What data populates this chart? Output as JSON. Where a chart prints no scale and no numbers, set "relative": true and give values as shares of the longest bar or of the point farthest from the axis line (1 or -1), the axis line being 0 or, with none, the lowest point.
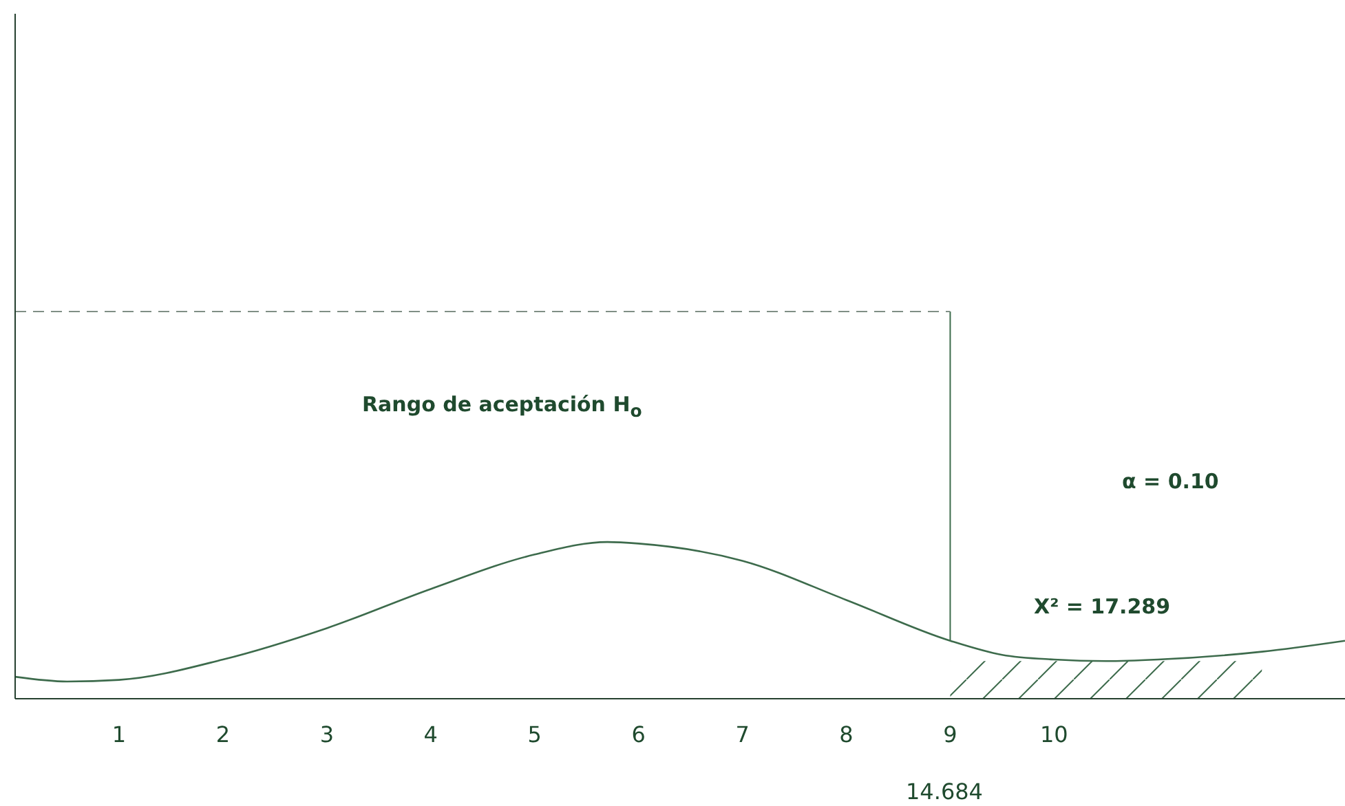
{
  "chart_data": {
    "type": "line",
    "relative": true,
    "x": [
      0,
      0.5,
      1,
      2,
      3,
      4,
      5,
      5.7,
      6,
      7,
      8,
      9,
      9.5,
      10,
      10.5,
      11,
      12,
      12.8
    ],
    "values": [
      0.14,
      0.11,
      0.12,
      0.25,
      0.45,
      0.7,
      0.92,
      1,
      0.99,
      0.88,
      0.63,
      0.37,
      0.28,
      0.25,
      0.24,
      0.25,
      0.3,
      0.37
    ],
    "color": "#3d6b4c",
    "marker": "none",
    "line_style": "solid",
    "grid": false,
    "legend": false,
    "xlim": [
      0,
      12.8
    ],
    "xticks": [
      1,
      2,
      3,
      4,
      5,
      6,
      7,
      8,
      9,
      10
    ],
    "ref_lines": [
      {
        "axis": "x",
        "value": 9,
        "color": "#3d6b4c",
        "line_style": "solid"
      },
      {
        "axis": "y",
        "value": 2.47,
        "color": "#7f8f85",
        "line_style": "dashed"
      }
    ],
    "bands": [
      {
        "axis": "x",
        "from": 9,
        "to": 12,
        "color": "#3d6b4c"
      }
    ],
    "annotations": [
      "Rango de aceptación H$_{o}$",
      "α = 0.10",
      "X² = 17.289",
      "14.684"
    ]
  }
}
